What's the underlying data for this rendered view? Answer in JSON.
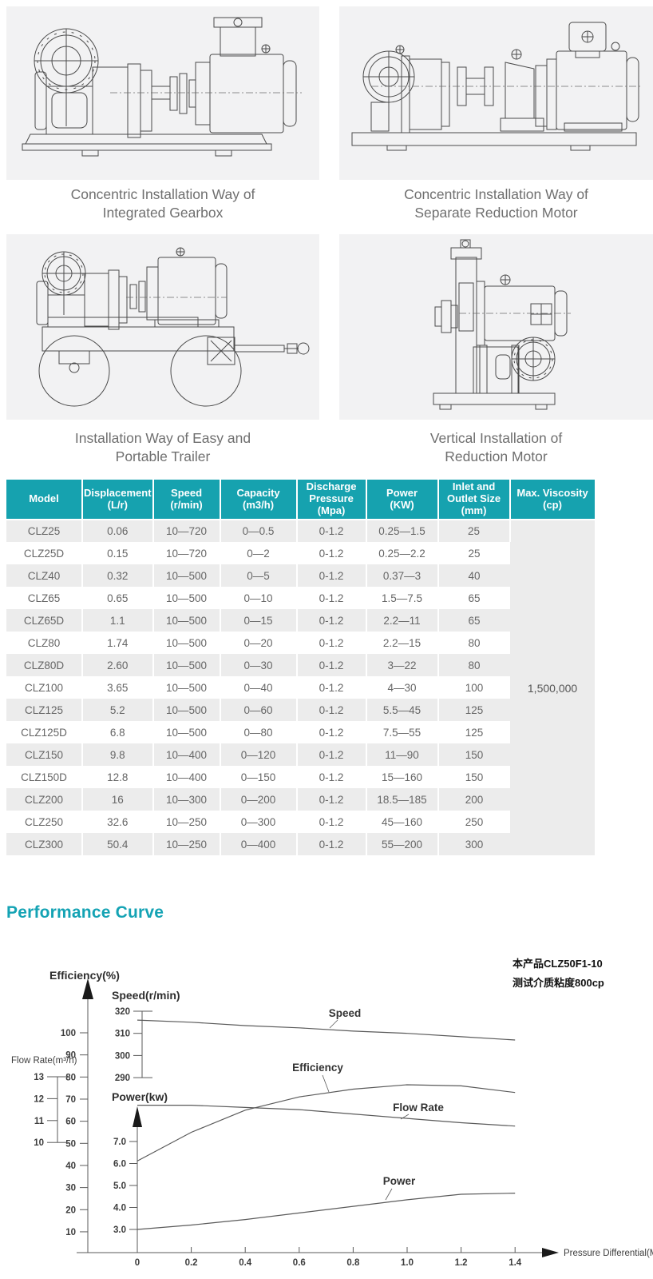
{
  "colors": {
    "teal_header": "#16a2af",
    "title_teal": "#14a3b4",
    "panel_bg": "#f2f2f3",
    "row_alt": "#ececec",
    "body_text": "#666666",
    "caption_text": "#6f6f6f",
    "chart_line": "#5a5a5a"
  },
  "figures": [
    {
      "caption_lines": [
        "Concentric Installation Way of",
        "Integrated Gearbox"
      ]
    },
    {
      "caption_lines": [
        "Concentric Installation Way of",
        "Separate Reduction Motor"
      ]
    },
    {
      "caption_lines": [
        "Installation Way of Easy and",
        "Portable Trailer"
      ]
    },
    {
      "caption_lines": [
        "Vertical Installation of",
        "Reduction Motor"
      ]
    }
  ],
  "spec_table": {
    "headers": [
      [
        "Model"
      ],
      [
        "Displacement",
        "(L/r)"
      ],
      [
        "Speed",
        "(r/min)"
      ],
      [
        "Capacity",
        "(m3/h)"
      ],
      [
        "Discharge",
        "Pressure",
        "(Mpa)"
      ],
      [
        "Power",
        "(KW)"
      ],
      [
        "Inlet and",
        "Outlet Size",
        "(mm)"
      ],
      [
        "Max. Viscosity",
        "(cp)"
      ]
    ],
    "rows": [
      [
        "CLZ25",
        "0.06",
        "10—720",
        "0—0.5",
        "0-1.2",
        "0.25—1.5",
        "25"
      ],
      [
        "CLZ25D",
        "0.15",
        "10—720",
        "0—2",
        "0-1.2",
        "0.25—2.2",
        "25"
      ],
      [
        "CLZ40",
        "0.32",
        "10—500",
        "0—5",
        "0-1.2",
        "0.37—3",
        "40"
      ],
      [
        "CLZ65",
        "0.65",
        "10—500",
        "0—10",
        "0-1.2",
        "1.5—7.5",
        "65"
      ],
      [
        "CLZ65D",
        "1.1",
        "10—500",
        "0—15",
        "0-1.2",
        "2.2—11",
        "65"
      ],
      [
        "CLZ80",
        "1.74",
        "10—500",
        "0—20",
        "0-1.2",
        "2.2—15",
        "80"
      ],
      [
        "CLZ80D",
        "2.60",
        "10—500",
        "0—30",
        "0-1.2",
        "3—22",
        "80"
      ],
      [
        "CLZ100",
        "3.65",
        "10—500",
        "0—40",
        "0-1.2",
        "4—30",
        "100"
      ],
      [
        "CLZ125",
        "5.2",
        "10—500",
        "0—60",
        "0-1.2",
        "5.5—45",
        "125"
      ],
      [
        "CLZ125D",
        "6.8",
        "10—500",
        "0—80",
        "0-1.2",
        "7.5—55",
        "125"
      ],
      [
        "CLZ150",
        "9.8",
        "10—400",
        "0—120",
        "0-1.2",
        "11—90",
        "150"
      ],
      [
        "CLZ150D",
        "12.8",
        "10—400",
        "0—150",
        "0-1.2",
        "15—160",
        "150"
      ],
      [
        "CLZ200",
        "16",
        "10—300",
        "0—200",
        "0-1.2",
        "18.5—185",
        "200"
      ],
      [
        "CLZ250",
        "32.6",
        "10—250",
        "0—300",
        "0-1.2",
        "45—160",
        "250"
      ],
      [
        "CLZ300",
        "50.4",
        "10—250",
        "0—400",
        "0-1.2",
        "55—200",
        "300"
      ]
    ],
    "max_viscosity": "1,500,000"
  },
  "performance": {
    "title": "Performance Curve",
    "chart_data": {
      "type": "line",
      "x": [
        0,
        0.2,
        0.4,
        0.6,
        0.8,
        1.0,
        1.2,
        1.4
      ],
      "x_tick_labels": [
        "0",
        "0.2",
        "0.4",
        "0.6",
        "0.8",
        "1.0",
        "1.2",
        "1.4"
      ],
      "xlabel": "Pressure Differential(Mpa)",
      "annotation_lines": [
        "本产品CLZ50F1-10",
        "测试介质粘度800cp"
      ],
      "axes": {
        "efficiency": {
          "label": "Efficiency(%)",
          "ticks": [
            100,
            90,
            80,
            70,
            60,
            50,
            40,
            30,
            20,
            10
          ]
        },
        "flow": {
          "label": "Flow Rate(m³/h)",
          "ticks": [
            13,
            12,
            11,
            10
          ]
        },
        "speed": {
          "label": "Speed(r/min)",
          "ticks": [
            320,
            310,
            300,
            290
          ]
        },
        "power": {
          "label": "Power(kw)",
          "ticks": [
            "7.0",
            "6.0",
            "5.0",
            "4.0",
            "3.0"
          ]
        }
      },
      "series": [
        {
          "name": "Speed",
          "axis": "speed",
          "values": [
            316,
            315,
            313.5,
            312.5,
            311,
            310,
            308.5,
            307
          ]
        },
        {
          "name": "Efficiency",
          "axis": "efficiency",
          "values": [
            42,
            55,
            65,
            71,
            74.5,
            76.5,
            76,
            73
          ]
        },
        {
          "name": "Flow Rate",
          "axis": "flow",
          "values": [
            11.7,
            11.7,
            11.6,
            11.5,
            11.3,
            11.1,
            10.9,
            10.75
          ]
        },
        {
          "name": "Power",
          "axis": "power",
          "values": [
            3.0,
            3.2,
            3.45,
            3.75,
            4.05,
            4.35,
            4.6,
            4.65
          ]
        }
      ],
      "legend_position": "inline-curve-labels",
      "grid": false
    }
  }
}
